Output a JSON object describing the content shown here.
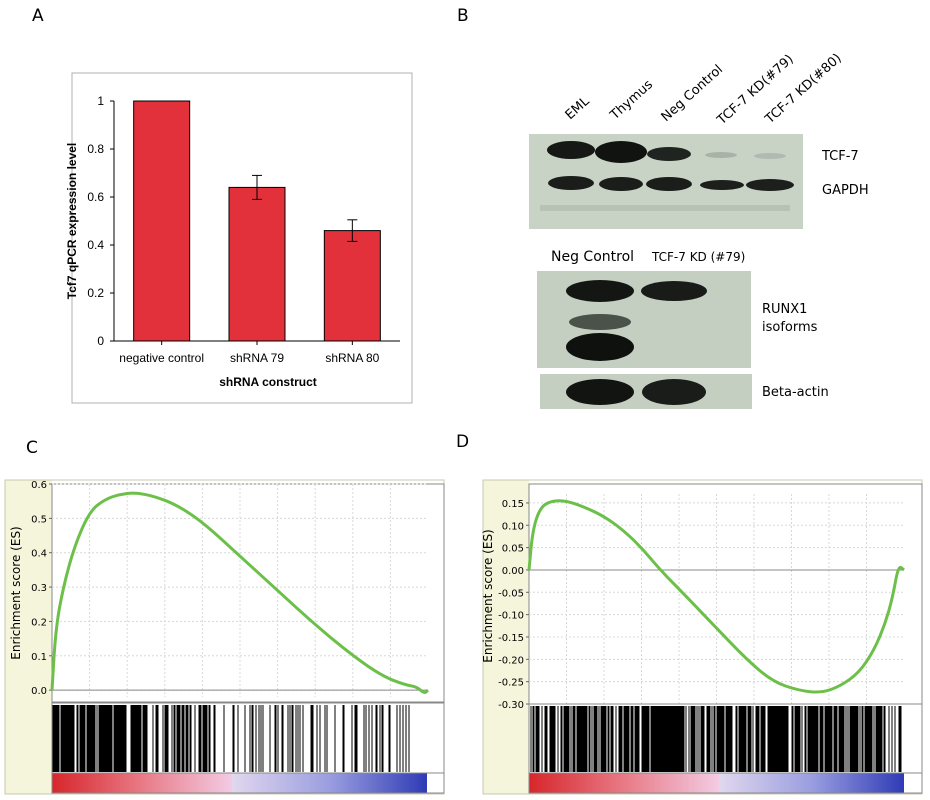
{
  "panels": {
    "a": "A",
    "b": "B",
    "c": "C",
    "d": "D"
  },
  "colors": {
    "bar": "#e2313a",
    "es_curve": "#6cc04a",
    "heat_red": "#d7262b",
    "heat_blue": "#2f3bb5",
    "side_band": "#f5f5dc"
  },
  "chart_data": [
    {
      "type": "bar",
      "categories": [
        "negative control",
        "shRNA 79",
        "shRNA 80"
      ],
      "values": [
        1.0,
        0.64,
        0.46
      ],
      "errors": [
        0,
        0.05,
        0.045
      ],
      "xlabel": "shRNA construct",
      "ylabel": "Tcf7 qPCR  expression level",
      "ylim": [
        0,
        1
      ],
      "yticks": [
        "0",
        "0.2",
        "0.4",
        "0.6",
        "0.8",
        "1"
      ],
      "grid": false
    },
    {
      "type": "line",
      "ylabel": "Enrichment score (ES)",
      "ylim": [
        -0.02,
        0.6
      ],
      "yticks": [
        "0.0",
        "0.1",
        "0.2",
        "0.3",
        "0.4",
        "0.5",
        "0.6"
      ],
      "x": [
        0,
        0.01,
        0.03,
        0.06,
        0.1,
        0.14,
        0.18,
        0.22,
        0.27,
        0.33,
        0.4,
        0.5,
        0.6,
        0.7,
        0.8,
        0.88,
        0.94,
        0.97,
        0.99,
        1.0
      ],
      "y": [
        0.0,
        0.18,
        0.3,
        0.42,
        0.52,
        0.555,
        0.57,
        0.575,
        0.565,
        0.54,
        0.49,
        0.39,
        0.29,
        0.19,
        0.1,
        0.04,
        0.015,
        0.01,
        -0.01,
        0.0
      ],
      "grid": true
    },
    {
      "type": "line",
      "ylabel": "Enrichment score (ES)",
      "ylim": [
        -0.3,
        0.17
      ],
      "yticks": [
        "0.15",
        "0.10",
        "0.05",
        "0.00",
        "-0.05",
        "-0.10",
        "-0.15",
        "-0.20",
        "-0.25",
        "-0.30"
      ],
      "x": [
        0,
        0.01,
        0.03,
        0.06,
        0.1,
        0.15,
        0.2,
        0.25,
        0.3,
        0.35,
        0.42,
        0.5,
        0.58,
        0.65,
        0.72,
        0.78,
        0.83,
        0.88,
        0.92,
        0.95,
        0.97,
        0.985,
        1.0
      ],
      "y": [
        0.0,
        0.09,
        0.14,
        0.155,
        0.155,
        0.14,
        0.12,
        0.09,
        0.05,
        0.0,
        -0.06,
        -0.13,
        -0.2,
        -0.25,
        -0.27,
        -0.275,
        -0.26,
        -0.23,
        -0.18,
        -0.12,
        -0.06,
        0.01,
        0.0
      ],
      "grid": true
    }
  ],
  "blot_b_top": {
    "lanes": [
      "EML",
      "Thymus",
      "Neg Control",
      "TCF-7 KD(#79)",
      "TCF-7 KD(#80)"
    ],
    "bands": [
      "TCF-7",
      "GAPDH"
    ]
  },
  "blot_b_bottom": {
    "lanes": [
      "Neg Control",
      "TCF-7 KD (#79)"
    ],
    "bands_runx1": "RUNX1\nisoforms",
    "runx1_line1": "RUNX1",
    "runx1_line2": "isoforms",
    "band_actin": "Beta-actin"
  }
}
